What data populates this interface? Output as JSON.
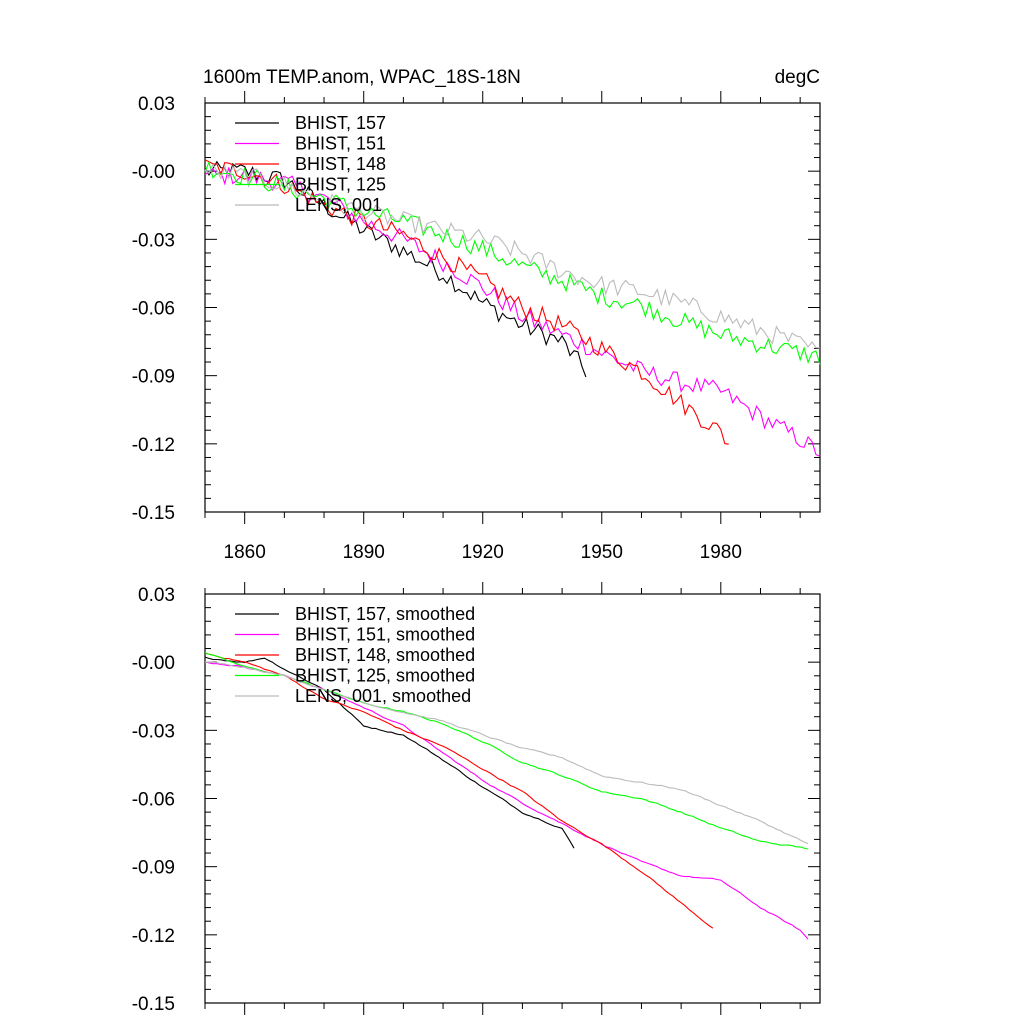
{
  "chart_data": [
    {
      "type": "line",
      "title": "1600m TEMP.anom, WPAC_18S-18N",
      "units": "degC",
      "xlim": [
        1850,
        2005
      ],
      "ylim": [
        -0.15,
        0.03
      ],
      "yticks": [
        "0.03",
        "-0.00",
        "-0.03",
        "-0.06",
        "-0.09",
        "-0.12",
        "-0.15"
      ],
      "xticks": [
        "1860",
        "1890",
        "1920",
        "1950",
        "1980"
      ],
      "xtick_values": [
        1860,
        1890,
        1920,
        1950,
        1980
      ],
      "grid": false,
      "legend_placement": "top-left",
      "smoothed": false,
      "series": [
        {
          "name": "BHIST, 157",
          "color": "#000000",
          "x_start": 1850,
          "x_end": 1946,
          "anchors": [
            [
              1850,
              0.0
            ],
            [
              1860,
              0.0
            ],
            [
              1870,
              -0.004
            ],
            [
              1880,
              -0.015
            ],
            [
              1890,
              -0.026
            ],
            [
              1900,
              -0.035
            ],
            [
              1910,
              -0.045
            ],
            [
              1920,
              -0.058
            ],
            [
              1930,
              -0.068
            ],
            [
              1940,
              -0.075
            ],
            [
              1946,
              -0.088
            ]
          ]
        },
        {
          "name": "BHIST, 151",
          "color": "#ff00ff",
          "x_start": 1850,
          "x_end": 2005,
          "anchors": [
            [
              1850,
              -0.002
            ],
            [
              1860,
              -0.002
            ],
            [
              1870,
              -0.005
            ],
            [
              1880,
              -0.012
            ],
            [
              1890,
              -0.022
            ],
            [
              1900,
              -0.03
            ],
            [
              1910,
              -0.04
            ],
            [
              1920,
              -0.051
            ],
            [
              1930,
              -0.064
            ],
            [
              1940,
              -0.072
            ],
            [
              1950,
              -0.08
            ],
            [
              1960,
              -0.088
            ],
            [
              1970,
              -0.093
            ],
            [
              1980,
              -0.097
            ],
            [
              1990,
              -0.108
            ],
            [
              2000,
              -0.118
            ],
            [
              2005,
              -0.124
            ]
          ]
        },
        {
          "name": "BHIST, 148",
          "color": "#ff0000",
          "x_start": 1850,
          "x_end": 1982,
          "anchors": [
            [
              1850,
              0.002
            ],
            [
              1860,
              0.0
            ],
            [
              1870,
              -0.006
            ],
            [
              1880,
              -0.015
            ],
            [
              1890,
              -0.022
            ],
            [
              1900,
              -0.028
            ],
            [
              1910,
              -0.038
            ],
            [
              1920,
              -0.048
            ],
            [
              1930,
              -0.06
            ],
            [
              1940,
              -0.068
            ],
            [
              1950,
              -0.078
            ],
            [
              1960,
              -0.088
            ],
            [
              1970,
              -0.102
            ],
            [
              1980,
              -0.115
            ],
            [
              1982,
              -0.12
            ]
          ]
        },
        {
          "name": "BHIST, 125",
          "color": "#00ff00",
          "x_start": 1850,
          "x_end": 2005,
          "anchors": [
            [
              1850,
              0.002
            ],
            [
              1860,
              -0.002
            ],
            [
              1870,
              -0.007
            ],
            [
              1880,
              -0.012
            ],
            [
              1890,
              -0.018
            ],
            [
              1900,
              -0.022
            ],
            [
              1910,
              -0.028
            ],
            [
              1920,
              -0.034
            ],
            [
              1930,
              -0.042
            ],
            [
              1940,
              -0.048
            ],
            [
              1950,
              -0.055
            ],
            [
              1960,
              -0.059
            ],
            [
              1970,
              -0.066
            ],
            [
              1980,
              -0.072
            ],
            [
              1990,
              -0.076
            ],
            [
              2000,
              -0.08
            ],
            [
              2005,
              -0.082
            ]
          ]
        },
        {
          "name": "LENS, 001",
          "color": "#bbbbbb",
          "x_start": 1850,
          "x_end": 2005,
          "anchors": [
            [
              1850,
              0.0
            ],
            [
              1860,
              -0.002
            ],
            [
              1870,
              -0.006
            ],
            [
              1880,
              -0.013
            ],
            [
              1890,
              -0.018
            ],
            [
              1900,
              -0.022
            ],
            [
              1910,
              -0.026
            ],
            [
              1920,
              -0.03
            ],
            [
              1930,
              -0.036
            ],
            [
              1940,
              -0.044
            ],
            [
              1950,
              -0.05
            ],
            [
              1960,
              -0.053
            ],
            [
              1970,
              -0.058
            ],
            [
              1980,
              -0.064
            ],
            [
              1990,
              -0.07
            ],
            [
              2000,
              -0.076
            ],
            [
              2005,
              -0.08
            ]
          ]
        }
      ]
    },
    {
      "type": "line",
      "xlim": [
        1850,
        2005
      ],
      "ylim": [
        -0.15,
        0.03
      ],
      "yticks": [
        "0.03",
        "-0.00",
        "-0.03",
        "-0.06",
        "-0.09",
        "-0.12",
        "-0.15"
      ],
      "xticks": [],
      "xtick_values": [
        1860,
        1890,
        1920,
        1950,
        1980
      ],
      "grid": false,
      "legend_placement": "top-left",
      "smoothed": true,
      "series": [
        {
          "name": "BHIST, 157, smoothed",
          "color": "#000000",
          "x_start": 1850,
          "x_end": 1943,
          "anchors": [
            [
              1850,
              0.002
            ],
            [
              1860,
              0.0
            ],
            [
              1865,
              0.002
            ],
            [
              1870,
              -0.003
            ],
            [
              1880,
              -0.012
            ],
            [
              1890,
              -0.028
            ],
            [
              1900,
              -0.032
            ],
            [
              1910,
              -0.043
            ],
            [
              1920,
              -0.055
            ],
            [
              1930,
              -0.066
            ],
            [
              1940,
              -0.073
            ],
            [
              1943,
              -0.082
            ]
          ]
        },
        {
          "name": "BHIST, 151, smoothed",
          "color": "#ff00ff",
          "x_start": 1850,
          "x_end": 2002,
          "anchors": [
            [
              1850,
              0.0
            ],
            [
              1860,
              -0.002
            ],
            [
              1870,
              -0.006
            ],
            [
              1880,
              -0.012
            ],
            [
              1890,
              -0.02
            ],
            [
              1900,
              -0.028
            ],
            [
              1910,
              -0.04
            ],
            [
              1920,
              -0.052
            ],
            [
              1930,
              -0.062
            ],
            [
              1940,
              -0.071
            ],
            [
              1950,
              -0.08
            ],
            [
              1960,
              -0.088
            ],
            [
              1970,
              -0.094
            ],
            [
              1980,
              -0.096
            ],
            [
              1990,
              -0.108
            ],
            [
              2000,
              -0.118
            ],
            [
              2002,
              -0.122
            ]
          ]
        },
        {
          "name": "BHIST, 148, smoothed",
          "color": "#ff0000",
          "x_start": 1850,
          "x_end": 1978,
          "anchors": [
            [
              1850,
              0.004
            ],
            [
              1860,
              0.0
            ],
            [
              1870,
              -0.006
            ],
            [
              1880,
              -0.016
            ],
            [
              1890,
              -0.022
            ],
            [
              1900,
              -0.03
            ],
            [
              1910,
              -0.037
            ],
            [
              1920,
              -0.047
            ],
            [
              1930,
              -0.057
            ],
            [
              1940,
              -0.07
            ],
            [
              1950,
              -0.08
            ],
            [
              1960,
              -0.092
            ],
            [
              1970,
              -0.106
            ],
            [
              1978,
              -0.117
            ]
          ]
        },
        {
          "name": "BHIST, 125, smoothed",
          "color": "#00ff00",
          "x_start": 1850,
          "x_end": 2002,
          "anchors": [
            [
              1850,
              0.004
            ],
            [
              1860,
              -0.002
            ],
            [
              1870,
              -0.006
            ],
            [
              1880,
              -0.012
            ],
            [
              1890,
              -0.018
            ],
            [
              1900,
              -0.022
            ],
            [
              1910,
              -0.027
            ],
            [
              1920,
              -0.035
            ],
            [
              1930,
              -0.044
            ],
            [
              1940,
              -0.05
            ],
            [
              1950,
              -0.057
            ],
            [
              1960,
              -0.06
            ],
            [
              1970,
              -0.066
            ],
            [
              1980,
              -0.073
            ],
            [
              1990,
              -0.079
            ],
            [
              2002,
              -0.082
            ]
          ]
        },
        {
          "name": "LENS, 001, smoothed",
          "color": "#bbbbbb",
          "x_start": 1850,
          "x_end": 2002,
          "anchors": [
            [
              1850,
              0.0
            ],
            [
              1860,
              -0.002
            ],
            [
              1870,
              -0.006
            ],
            [
              1880,
              -0.012
            ],
            [
              1890,
              -0.018
            ],
            [
              1900,
              -0.022
            ],
            [
              1910,
              -0.026
            ],
            [
              1920,
              -0.032
            ],
            [
              1930,
              -0.038
            ],
            [
              1940,
              -0.042
            ],
            [
              1950,
              -0.05
            ],
            [
              1960,
              -0.053
            ],
            [
              1970,
              -0.056
            ],
            [
              1980,
              -0.063
            ],
            [
              1990,
              -0.07
            ],
            [
              2002,
              -0.08
            ]
          ]
        }
      ]
    }
  ]
}
